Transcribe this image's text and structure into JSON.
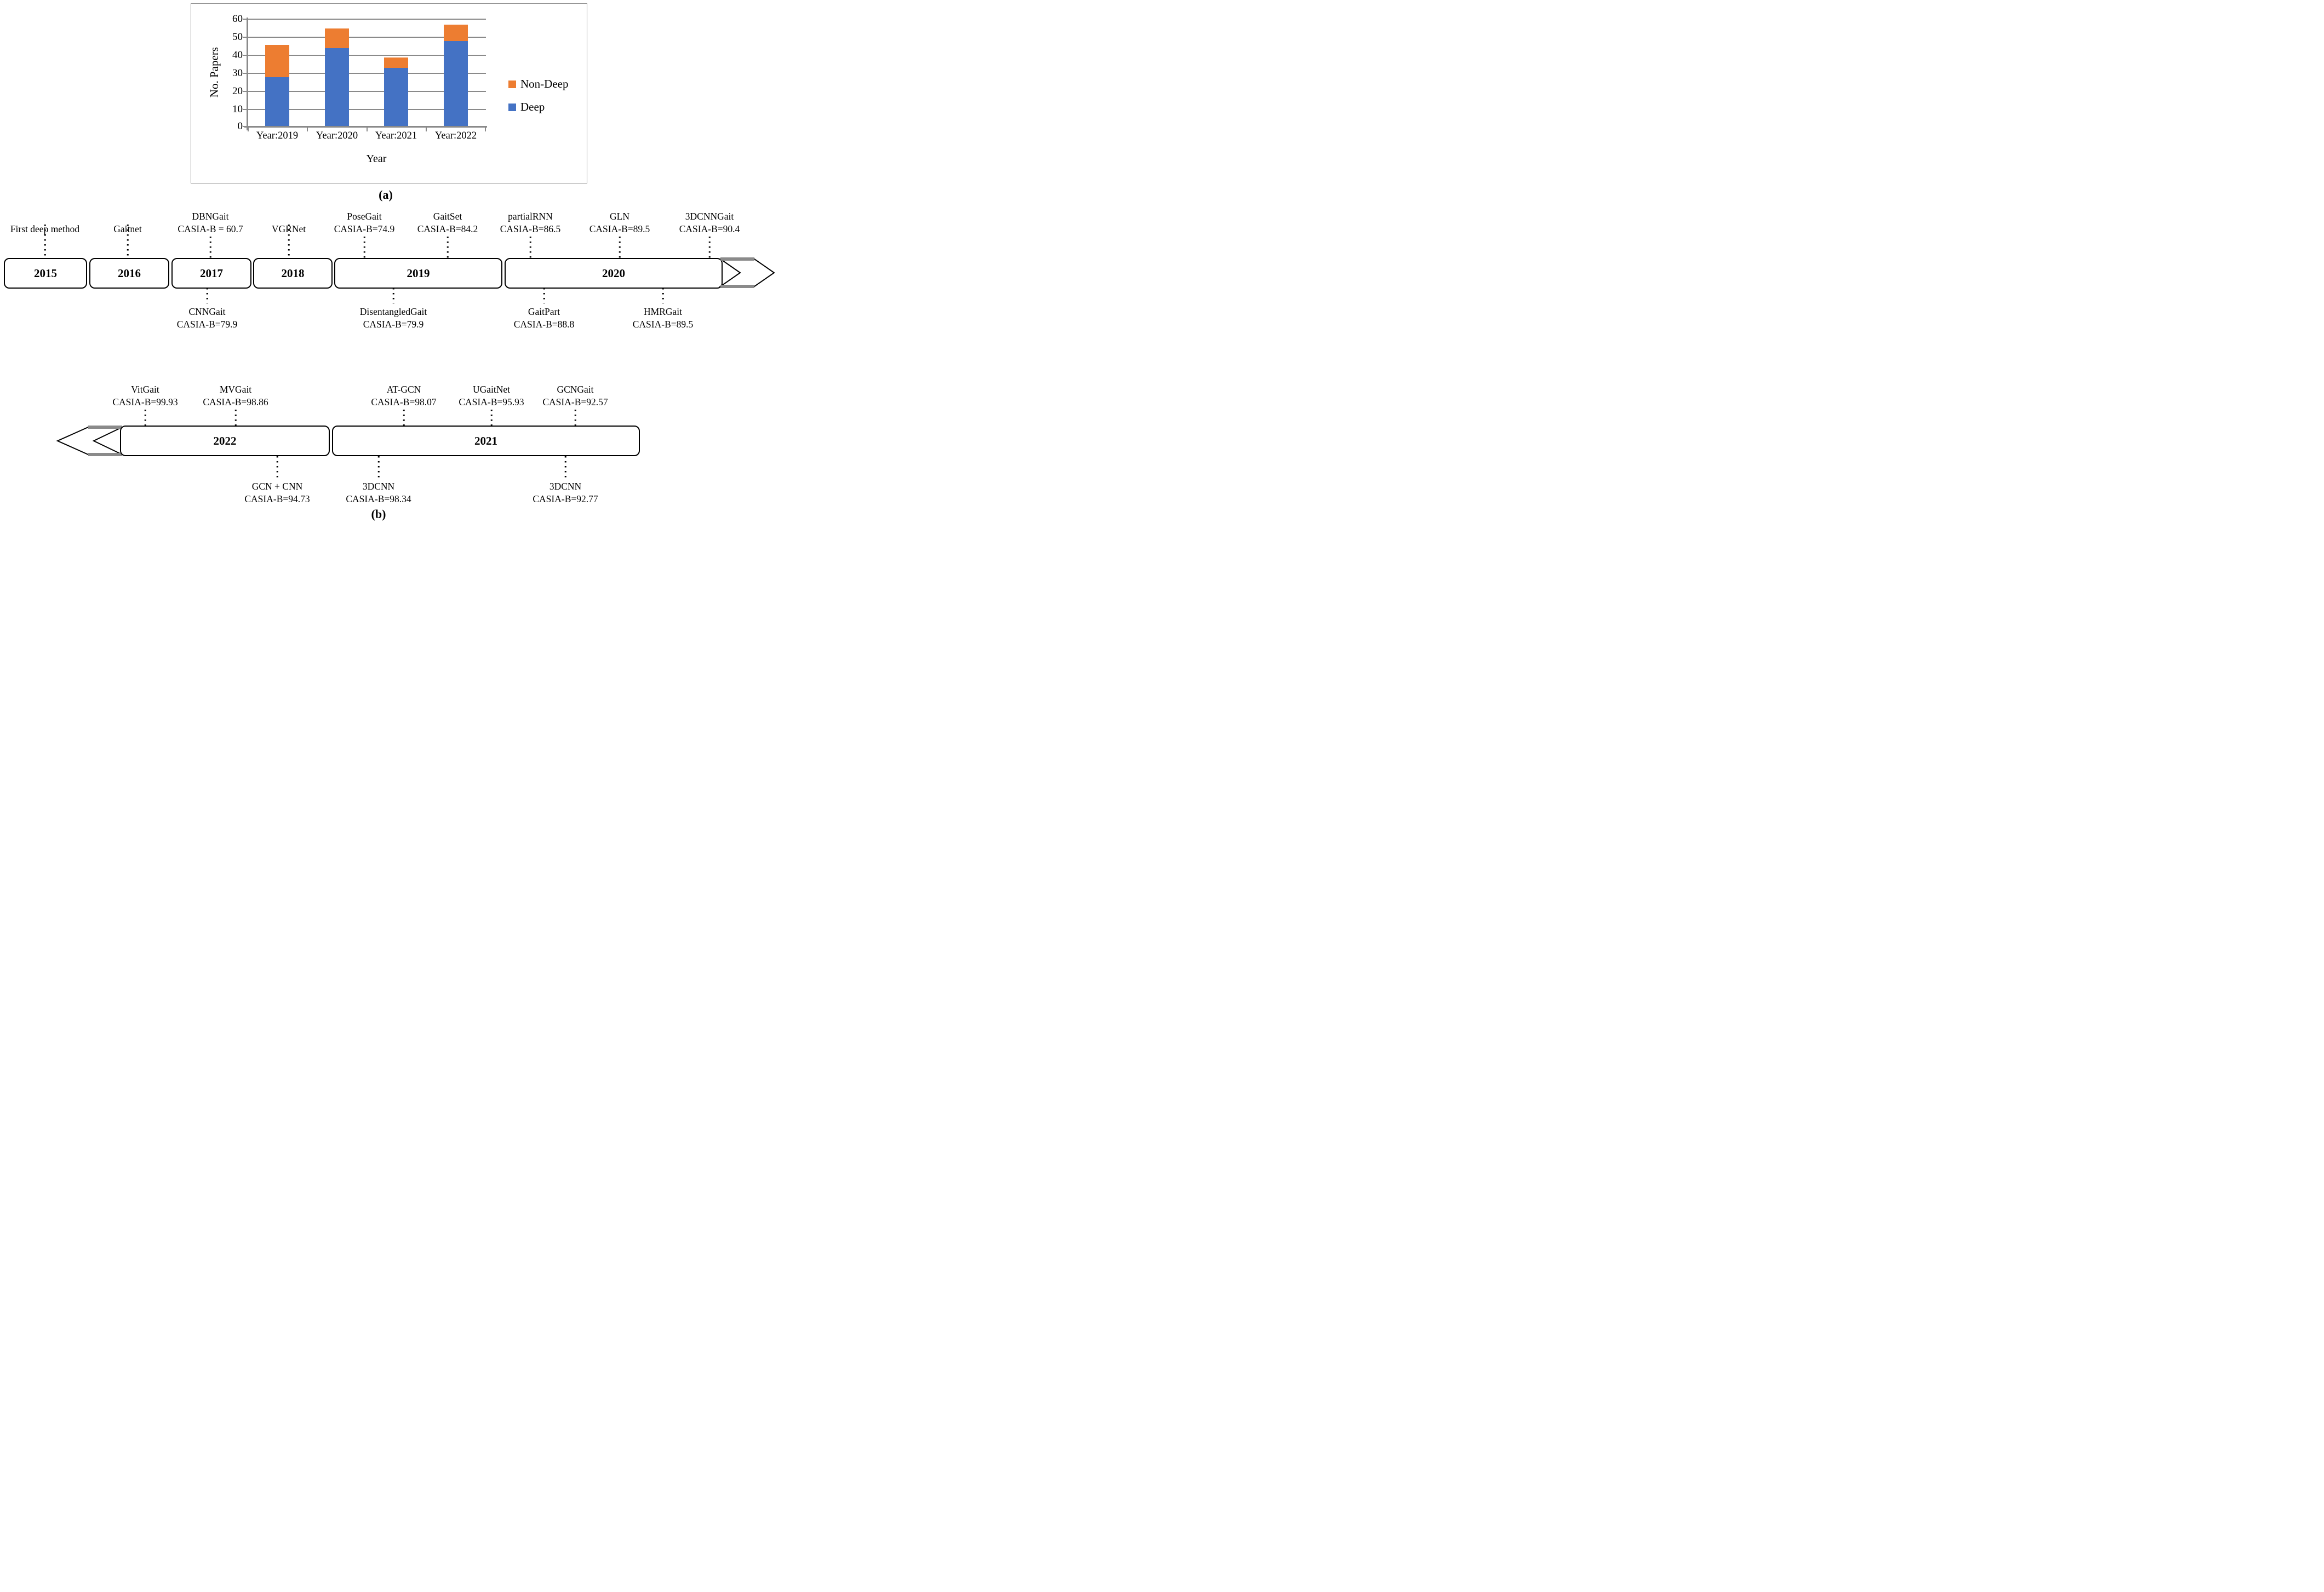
{
  "figure": {
    "panel_a": "(a)",
    "panel_b": "(b)"
  },
  "chart_data": {
    "type": "bar",
    "stacked": true,
    "title": "",
    "categories": [
      "Year:2019",
      "Year:2020",
      "Year:2021",
      "Year:2022"
    ],
    "series": [
      {
        "name": "Deep",
        "color": "#4472C4",
        "values": [
          27,
          43,
          32,
          47
        ]
      },
      {
        "name": "Non-Deep",
        "color": "#ED7D31",
        "values": [
          18,
          11,
          6,
          9
        ]
      }
    ],
    "totals": [
      45,
      54,
      38,
      56
    ],
    "xlabel": "Year",
    "ylabel": "No. Papers",
    "ylim": [
      0,
      60
    ],
    "yticks_desc": [
      "60",
      "50",
      "40",
      "30",
      "20",
      "10",
      "0"
    ],
    "grid": true,
    "legend_position": "right-middle",
    "legend": [
      {
        "label": "Non-Deep",
        "color": "#ED7D31"
      },
      {
        "label": "Deep",
        "color": "#4472C4"
      }
    ]
  },
  "timeline_top": {
    "direction": "arrow-right",
    "boxes": [
      {
        "year": "2015"
      },
      {
        "year": "2016"
      },
      {
        "year": "2017"
      },
      {
        "year": "2018"
      },
      {
        "year": "2019"
      },
      {
        "year": "2020"
      }
    ],
    "labels_above": [
      {
        "name": "First deep method",
        "metric": ""
      },
      {
        "name": "Gaitnet",
        "metric": ""
      },
      {
        "name": "DBNGait",
        "metric": "CASIA-B = 60.7"
      },
      {
        "name": "VGRNet",
        "metric": ""
      },
      {
        "name": "PoseGait",
        "metric": "CASIA-B=74.9"
      },
      {
        "name": "GaitSet",
        "metric": "CASIA-B=84.2"
      },
      {
        "name": "partialRNN",
        "metric": "CASIA-B=86.5"
      },
      {
        "name": "GLN",
        "metric": "CASIA-B=89.5"
      },
      {
        "name": "3DCNNGait",
        "metric": "CASIA-B=90.4"
      }
    ],
    "labels_below": [
      {
        "name": "CNNGait",
        "metric": "CASIA-B=79.9"
      },
      {
        "name": "DisentangledGait",
        "metric": "CASIA-B=79.9"
      },
      {
        "name": "GaitPart",
        "metric": "CASIA-B=88.8"
      },
      {
        "name": "HMRGait",
        "metric": "CASIA-B=89.5"
      }
    ]
  },
  "timeline_bottom": {
    "direction": "arrow-left",
    "boxes": [
      {
        "year": "2022"
      },
      {
        "year": "2021"
      }
    ],
    "labels_above": [
      {
        "name": "VitGait",
        "metric": "CASIA-B=99.93"
      },
      {
        "name": "MVGait",
        "metric": "CASIA-B=98.86"
      },
      {
        "name": "AT-GCN",
        "metric": "CASIA-B=98.07"
      },
      {
        "name": "UGaitNet",
        "metric": "CASIA-B=95.93"
      },
      {
        "name": "GCNGait",
        "metric": "CASIA-B=92.57"
      }
    ],
    "labels_below": [
      {
        "name": "GCN + CNN",
        "metric": "CASIA-B=94.73"
      },
      {
        "name": "3DCNN",
        "metric": "CASIA-B=98.34"
      },
      {
        "name": "3DCNN",
        "metric": "CASIA-B=92.77"
      }
    ]
  }
}
